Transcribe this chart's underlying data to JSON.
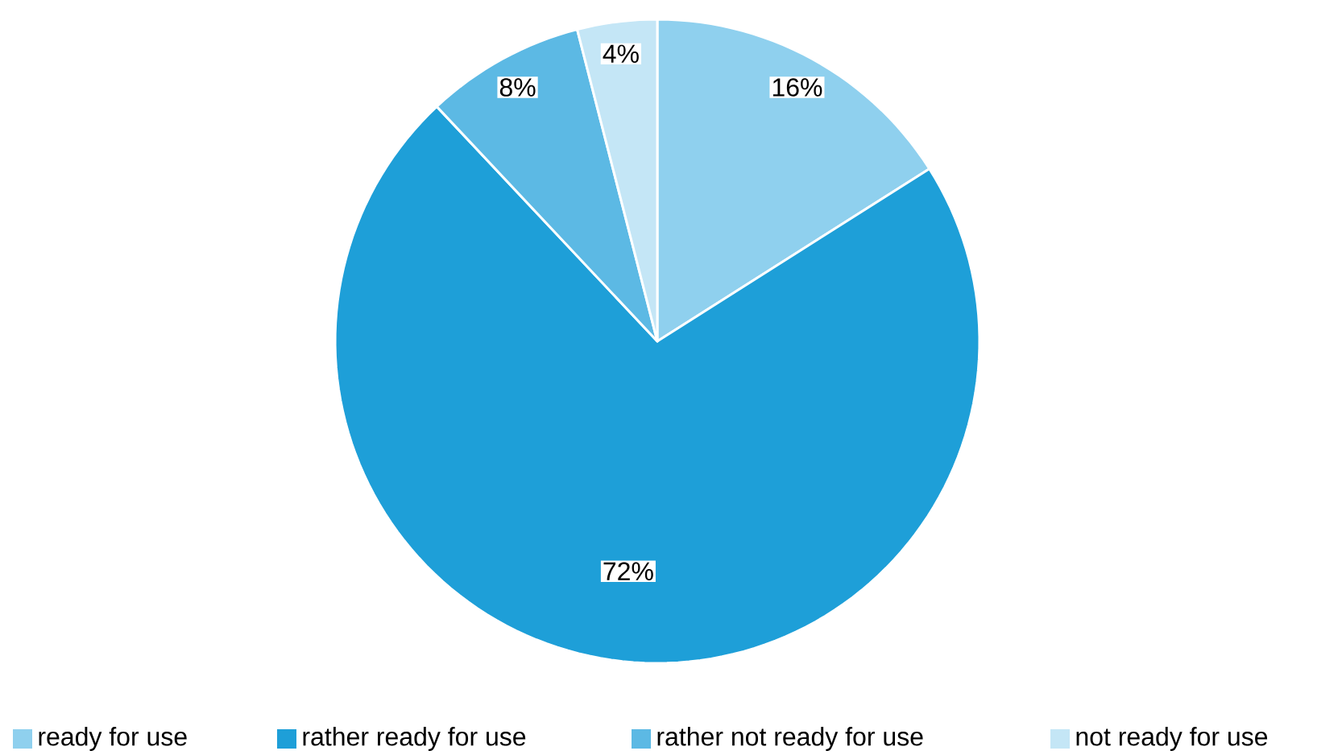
{
  "chart_data": {
    "type": "pie",
    "categories": [
      "ready for use",
      "rather ready for use",
      "rather not ready for use",
      "not ready for use"
    ],
    "values": [
      16,
      72,
      8,
      4
    ],
    "value_labels": [
      "16%",
      "72%",
      "8%",
      "4%"
    ],
    "colors": [
      "#8fd0ee",
      "#1e9fd8",
      "#5cb9e4",
      "#c4e6f6"
    ],
    "legend": "bottom"
  }
}
